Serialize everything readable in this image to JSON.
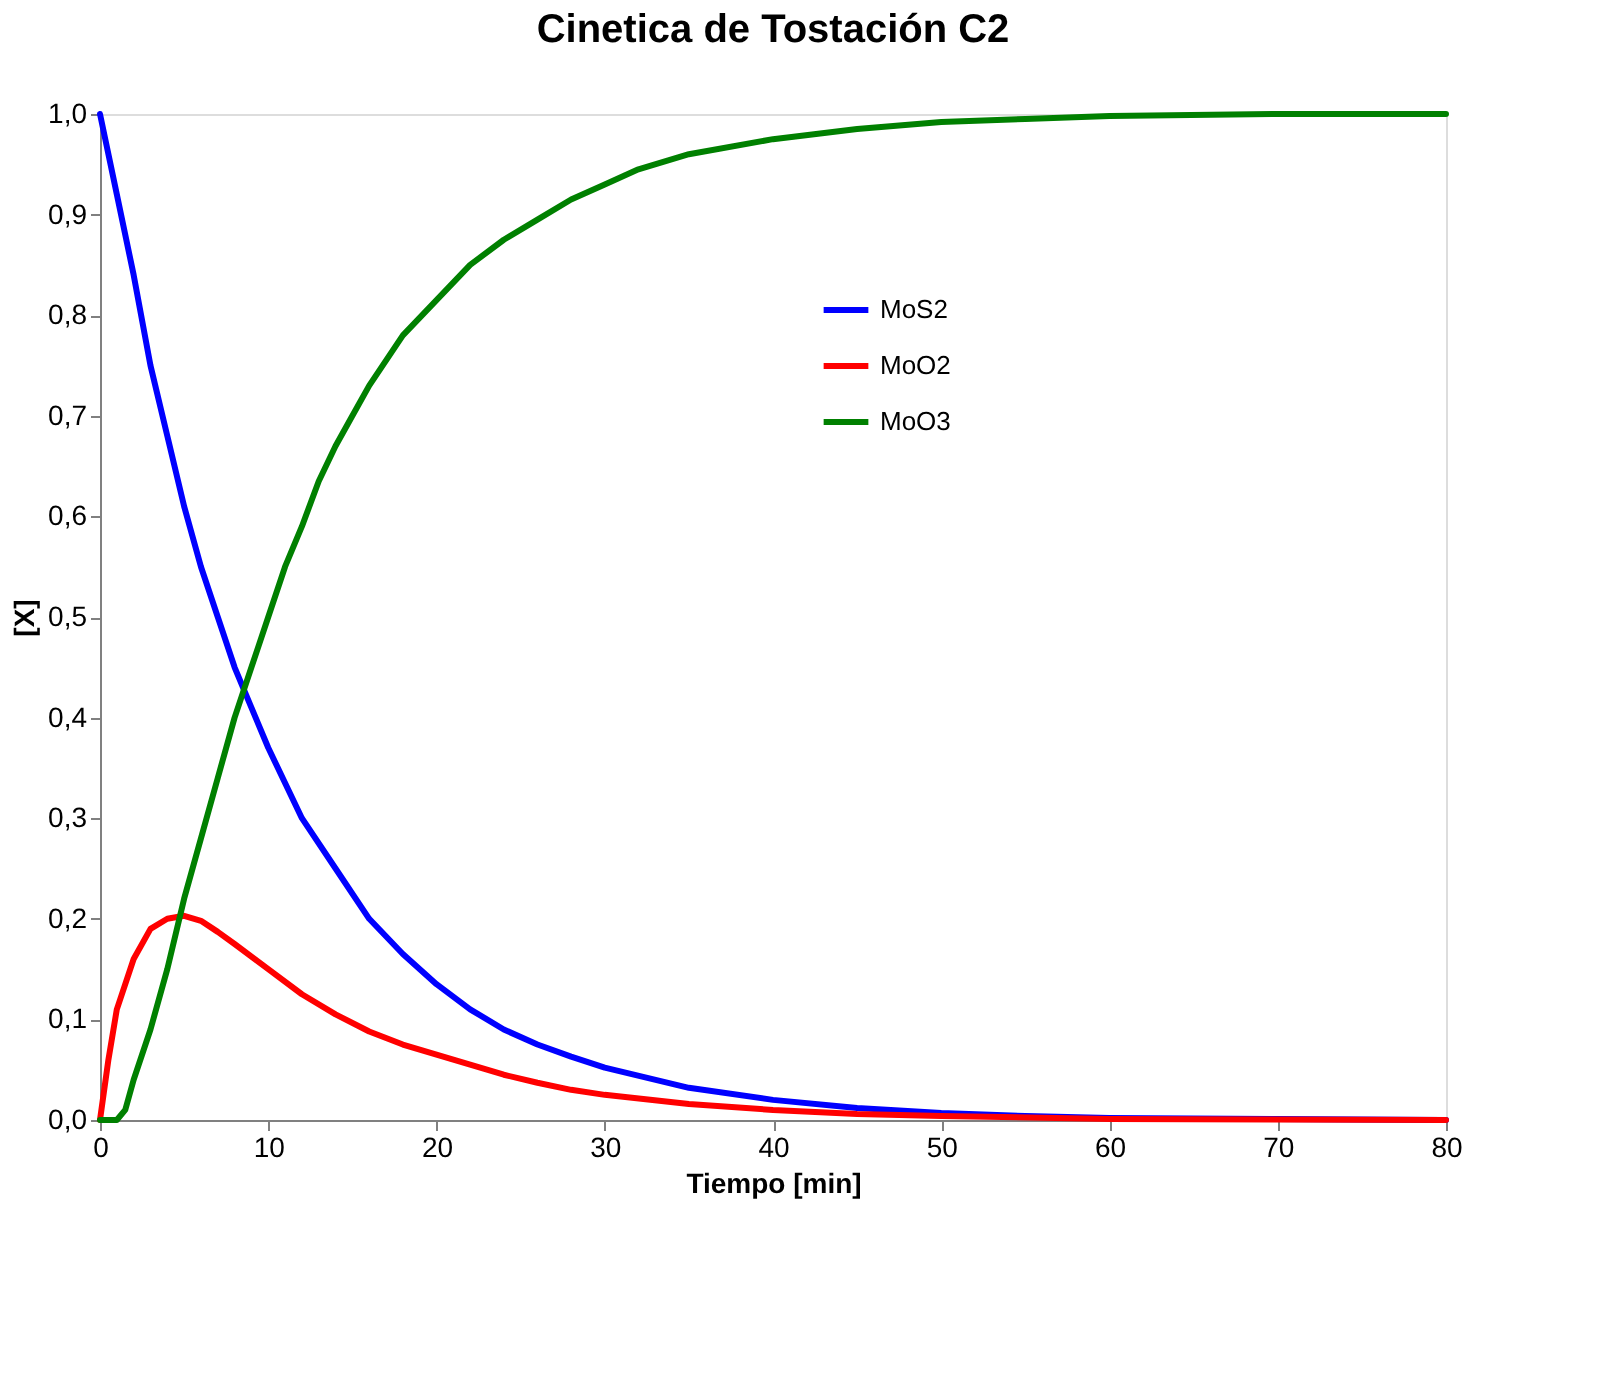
{
  "chart_data": {
    "type": "line",
    "title": "Cinetica de Tostación C2",
    "xlabel": "Tiempo [min]",
    "ylabel": "[X]",
    "xlim": [
      0,
      80
    ],
    "xticks": [
      0,
      10,
      20,
      30,
      40,
      50,
      60,
      70,
      80
    ],
    "ylim": [
      0,
      1
    ],
    "yticks": [
      {
        "value": 0,
        "label": "0,0"
      },
      {
        "value": 0.1,
        "label": "0,1"
      },
      {
        "value": 0.2,
        "label": "0,2"
      },
      {
        "value": 0.3,
        "label": "0,3"
      },
      {
        "value": 0.4,
        "label": "0,4"
      },
      {
        "value": 0.5,
        "label": "0,5"
      },
      {
        "value": 0.6,
        "label": "0,6"
      },
      {
        "value": 0.7,
        "label": "0,7"
      },
      {
        "value": 0.8,
        "label": "0,8"
      },
      {
        "value": 0.9,
        "label": "0,9"
      },
      {
        "value": 1,
        "label": "1,0"
      }
    ],
    "grid": false,
    "legend": "top right",
    "marker": "none",
    "line_style": "solid",
    "series": [
      {
        "name": "MoS2",
        "color": "#0000ff",
        "x": [
          0,
          1,
          2,
          3,
          4,
          5,
          6,
          7,
          8,
          9,
          10,
          12,
          14,
          16,
          18,
          20,
          22,
          24,
          26,
          28,
          30,
          35,
          40,
          45,
          50,
          55,
          60,
          70,
          80
        ],
        "values": [
          1.0,
          0.92,
          0.84,
          0.75,
          0.68,
          0.61,
          0.55,
          0.5,
          0.45,
          0.41,
          0.37,
          0.3,
          0.25,
          0.2,
          0.165,
          0.135,
          0.11,
          0.09,
          0.075,
          0.063,
          0.052,
          0.032,
          0.02,
          0.012,
          0.007,
          0.004,
          0.002,
          0.001,
          0
        ]
      },
      {
        "name": "MoO2",
        "color": "#ff0000",
        "x": [
          0,
          0.5,
          1,
          2,
          3,
          4,
          5,
          6,
          7,
          8,
          10,
          12,
          14,
          16,
          18,
          20,
          22,
          24,
          26,
          28,
          30,
          35,
          40,
          45,
          50,
          60,
          80
        ],
        "values": [
          0,
          0.06,
          0.11,
          0.16,
          0.19,
          0.2,
          0.203,
          0.198,
          0.187,
          0.175,
          0.15,
          0.125,
          0.105,
          0.088,
          0.075,
          0.065,
          0.055,
          0.045,
          0.037,
          0.03,
          0.025,
          0.016,
          0.01,
          0.006,
          0.004,
          0.001,
          0
        ]
      },
      {
        "name": "MoO3",
        "color": "#008000",
        "x": [
          0,
          1,
          1.5,
          2,
          3,
          4,
          5,
          6,
          7,
          8,
          9,
          10,
          11,
          12,
          13,
          14,
          15,
          16,
          18,
          20,
          22,
          24,
          26,
          28,
          30,
          32,
          35,
          40,
          45,
          50,
          55,
          60,
          70,
          80
        ],
        "values": [
          0,
          0,
          0.01,
          0.04,
          0.09,
          0.15,
          0.22,
          0.28,
          0.34,
          0.4,
          0.45,
          0.5,
          0.55,
          0.59,
          0.635,
          0.67,
          0.7,
          0.73,
          0.78,
          0.815,
          0.85,
          0.875,
          0.895,
          0.915,
          0.93,
          0.945,
          0.96,
          0.975,
          0.985,
          0.992,
          0.995,
          0.998,
          1.0,
          1.0
        ]
      }
    ]
  }
}
